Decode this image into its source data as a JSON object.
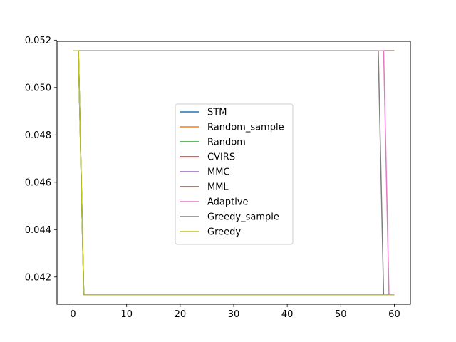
{
  "chart_data": {
    "type": "line",
    "title": "",
    "xlabel": "",
    "ylabel": "",
    "xlim": [
      -3,
      63
    ],
    "ylim": [
      0.04085,
      0.05195
    ],
    "xticks": [
      0,
      10,
      20,
      30,
      40,
      50,
      60
    ],
    "yticks": [
      0.042,
      0.044,
      0.046,
      0.048,
      0.05,
      0.052
    ],
    "ytick_labels": [
      "0.042",
      "0.044",
      "0.046",
      "0.048",
      "0.050",
      "0.052"
    ],
    "xtick_labels": [
      "0",
      "10",
      "20",
      "30",
      "40",
      "50",
      "60"
    ],
    "grid": false,
    "legend_position": "center",
    "series": [
      {
        "name": "STM",
        "color": "#1f77b4",
        "x": [
          0,
          1,
          2,
          60
        ],
        "y": [
          0.05155,
          0.05155,
          0.04125,
          0.04125
        ]
      },
      {
        "name": "Random_sample",
        "color": "#ff7f0e",
        "x": [
          0,
          1,
          2,
          60
        ],
        "y": [
          0.05155,
          0.05155,
          0.04125,
          0.04125
        ]
      },
      {
        "name": "Random",
        "color": "#2ca02c",
        "x": [
          0,
          1,
          2,
          60
        ],
        "y": [
          0.05155,
          0.05155,
          0.04125,
          0.04125
        ]
      },
      {
        "name": "CVIRS",
        "color": "#d62728",
        "x": [
          0,
          60
        ],
        "y": [
          0.05155,
          0.05155
        ]
      },
      {
        "name": "MMC",
        "color": "#9467bd",
        "x": [
          0,
          60
        ],
        "y": [
          0.05155,
          0.05155
        ]
      },
      {
        "name": "MML",
        "color": "#8c564b",
        "x": [
          0,
          60
        ],
        "y": [
          0.05155,
          0.05155
        ]
      },
      {
        "name": "Adaptive",
        "color": "#e377c2",
        "x": [
          0,
          58,
          59,
          60
        ],
        "y": [
          0.05155,
          0.05155,
          0.04125,
          0.04125
        ]
      },
      {
        "name": "Greedy_sample",
        "color": "#7f7f7f",
        "x": [
          0,
          57,
          58,
          60
        ],
        "y": [
          0.05155,
          0.05155,
          0.04125,
          0.04125
        ]
      },
      {
        "name": "Greedy",
        "color": "#bcbd22",
        "x": [
          0,
          1,
          2,
          60
        ],
        "y": [
          0.05155,
          0.05155,
          0.04125,
          0.04125
        ]
      }
    ]
  }
}
